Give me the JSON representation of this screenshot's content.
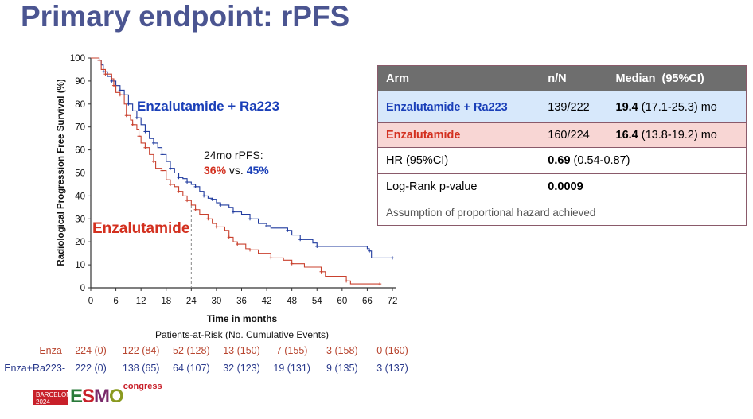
{
  "title": "Primary endpoint: rPFS",
  "chart_data": {
    "type": "line",
    "subtype": "kaplan-meier",
    "xlabel": "Time in months",
    "ylabel": "Radiological Progression Free Survival (%)",
    "xlim": [
      0,
      72
    ],
    "ylim": [
      0,
      100
    ],
    "xticks": [
      0,
      6,
      12,
      18,
      24,
      30,
      36,
      42,
      48,
      54,
      60,
      66,
      72
    ],
    "yticks": [
      0,
      10,
      20,
      30,
      40,
      50,
      60,
      70,
      80,
      90,
      100
    ],
    "series": [
      {
        "name": "Enzalutamide + Ra223",
        "color": "#1f3a9e",
        "points": [
          [
            0,
            100
          ],
          [
            2,
            99
          ],
          [
            2.5,
            97
          ],
          [
            3,
            94
          ],
          [
            4,
            92
          ],
          [
            5,
            90
          ],
          [
            6,
            88
          ],
          [
            7,
            86
          ],
          [
            8,
            84
          ],
          [
            9,
            80
          ],
          [
            10,
            77
          ],
          [
            11,
            74
          ],
          [
            12,
            71
          ],
          [
            13,
            68
          ],
          [
            14,
            65
          ],
          [
            15,
            63
          ],
          [
            16,
            61
          ],
          [
            17,
            58
          ],
          [
            18,
            55
          ],
          [
            19,
            52
          ],
          [
            20,
            50
          ],
          [
            21,
            48
          ],
          [
            22,
            47.5
          ],
          [
            23,
            46
          ],
          [
            24,
            45
          ],
          [
            25,
            44
          ],
          [
            26,
            42
          ],
          [
            27,
            40
          ],
          [
            28,
            39
          ],
          [
            29,
            38.5
          ],
          [
            30,
            37
          ],
          [
            31,
            36
          ],
          [
            33,
            35
          ],
          [
            34,
            33
          ],
          [
            36,
            32
          ],
          [
            38,
            30
          ],
          [
            40,
            28
          ],
          [
            42,
            27
          ],
          [
            43,
            26
          ],
          [
            47,
            25
          ],
          [
            48,
            23
          ],
          [
            50,
            21
          ],
          [
            53,
            19.5
          ],
          [
            54,
            18
          ],
          [
            66,
            17
          ],
          [
            66.5,
            16
          ],
          [
            67,
            13
          ],
          [
            72,
            13
          ]
        ]
      },
      {
        "name": "Enzalutamide",
        "color": "#c9412e",
        "points": [
          [
            0,
            100
          ],
          [
            2,
            99
          ],
          [
            2.5,
            95
          ],
          [
            3.5,
            93
          ],
          [
            5,
            91
          ],
          [
            5.5,
            88
          ],
          [
            6,
            85
          ],
          [
            7,
            84
          ],
          [
            8,
            80
          ],
          [
            8.5,
            75
          ],
          [
            9.5,
            73
          ],
          [
            10,
            71
          ],
          [
            11,
            69
          ],
          [
            11.5,
            66
          ],
          [
            12,
            63
          ],
          [
            13,
            61
          ],
          [
            14,
            58
          ],
          [
            15,
            55
          ],
          [
            15.5,
            52
          ],
          [
            17,
            51
          ],
          [
            18,
            47
          ],
          [
            19,
            45
          ],
          [
            20,
            44
          ],
          [
            21,
            42
          ],
          [
            22,
            40
          ],
          [
            23,
            38
          ],
          [
            24,
            36
          ],
          [
            25,
            34
          ],
          [
            26,
            32
          ],
          [
            28,
            30
          ],
          [
            29,
            28
          ],
          [
            30,
            26.5
          ],
          [
            32,
            25
          ],
          [
            33,
            22
          ],
          [
            34,
            20
          ],
          [
            35,
            19
          ],
          [
            37,
            17
          ],
          [
            38,
            16.5
          ],
          [
            40,
            15
          ],
          [
            43,
            13
          ],
          [
            46,
            12
          ],
          [
            48,
            10.5
          ],
          [
            51,
            9
          ],
          [
            55,
            7
          ],
          [
            56,
            5
          ],
          [
            61,
            3
          ],
          [
            62,
            1.7
          ],
          [
            69,
            1.7
          ]
        ]
      }
    ],
    "annotations": {
      "combo_label": "Enzalutamide + Ra223",
      "enza_label": "Enzalutamide",
      "rpfs_24_title": "24mo rPFS:",
      "rpfs_24_enza": "36%",
      "rpfs_24_vs": " vs. ",
      "rpfs_24_combo": "45%",
      "reference_month": 24
    },
    "risk_table": {
      "title": "Patients-at-Risk (No. Cumulative Events)",
      "months": [
        0,
        12,
        24,
        36,
        48,
        60,
        72
      ],
      "rows": [
        {
          "label": "Enza-",
          "color": "#b8452f",
          "values": [
            "224 (0)",
            "122 (84)",
            "52 (128)",
            "13 (150)",
            "7 (155)",
            "3 (158)",
            "0 (160)"
          ]
        },
        {
          "label": "Enza+Ra223-",
          "color": "#2a3a8c",
          "values": [
            "222 (0)",
            "138 (65)",
            "64 (107)",
            "32 (123)",
            "19 (131)",
            "9 (135)",
            "3 (137)"
          ]
        }
      ]
    }
  },
  "table": {
    "headers": [
      "Arm",
      "n/N",
      "Median  (95%CI)"
    ],
    "combo": {
      "arm": "Enzalutamide + Ra223",
      "nN": "139/222",
      "median": "19.4",
      "ci": " (17.1-25.3) mo"
    },
    "enza": {
      "arm": "Enzalutamide",
      "nN": "160/224",
      "median": "16.4",
      "ci": " (13.8-19.2) mo"
    },
    "hr": {
      "label": "HR (95%CI)",
      "value": "0.69",
      "ci": " (0.54-0.87)"
    },
    "logrank": {
      "label": "Log-Rank p-value",
      "value": "0.0009"
    },
    "note": "Assumption of proportional hazard achieved"
  },
  "logo": {
    "city": "BARCELONA",
    "year": "2024",
    "brand": "ESMO",
    "suffix": "congress"
  }
}
